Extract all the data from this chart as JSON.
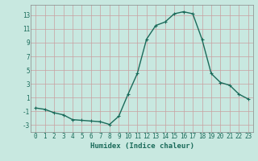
{
  "x": [
    0,
    1,
    2,
    3,
    4,
    5,
    6,
    7,
    8,
    9,
    10,
    11,
    12,
    13,
    14,
    15,
    16,
    17,
    18,
    19,
    20,
    21,
    22,
    23
  ],
  "y": [
    -0.5,
    -0.7,
    -1.2,
    -1.5,
    -2.2,
    -2.3,
    -2.4,
    -2.5,
    -2.9,
    -1.7,
    1.5,
    4.5,
    9.5,
    11.5,
    12.0,
    13.2,
    13.5,
    13.2,
    9.5,
    4.5,
    3.2,
    2.8,
    1.5,
    0.8
  ],
  "line_color": "#1a6b5a",
  "marker": "+",
  "marker_size": 3,
  "bg_color": "#c8e8e0",
  "grid_major_color": "#c8a0a0",
  "xlabel": "Humidex (Indice chaleur)",
  "xlim": [
    -0.5,
    23.5
  ],
  "ylim": [
    -4,
    14.5
  ],
  "yticks": [
    -3,
    -1,
    1,
    3,
    5,
    7,
    9,
    11,
    13
  ],
  "xticks": [
    0,
    1,
    2,
    3,
    4,
    5,
    6,
    7,
    8,
    9,
    10,
    11,
    12,
    13,
    14,
    15,
    16,
    17,
    18,
    19,
    20,
    21,
    22,
    23
  ],
  "xlabel_fontsize": 6.5,
  "tick_fontsize": 5.5,
  "line_width": 1.0
}
